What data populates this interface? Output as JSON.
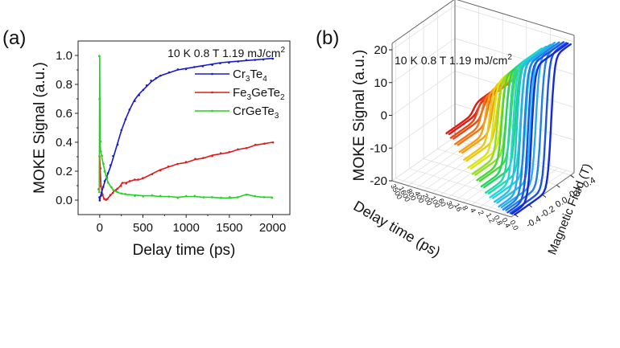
{
  "panels": {
    "a": {
      "label": "(a)"
    },
    "b": {
      "label": "(b)"
    }
  },
  "chart_data": [
    {
      "id": "a",
      "type": "line",
      "title": "",
      "annotation": "10 K  0.8 T  1.19 mJ/cm",
      "annotation_sup": "2",
      "xlabel": "Delay time (ps)",
      "ylabel": "MOKE Signal (a.u.)",
      "xlim": [
        -250,
        2200
      ],
      "ylim": [
        -0.1,
        1.1
      ],
      "xticks": [
        0,
        500,
        1000,
        1500,
        2000
      ],
      "xtick_labels": [
        "0",
        "500",
        "1000",
        "1500",
        "2000"
      ],
      "yticks": [
        0.0,
        0.2,
        0.4,
        0.6,
        0.8,
        1.0
      ],
      "ytick_labels": [
        "0.0",
        "0.2",
        "0.4",
        "0.6",
        "0.8",
        "1.0"
      ],
      "grid": false,
      "legend_position": "top-right",
      "series": [
        {
          "name": "Cr3Te4",
          "name_parts": [
            [
              "Cr",
              ""
            ],
            [
              "3",
              "sub"
            ],
            [
              "Te",
              ""
            ],
            [
              "4",
              "sub"
            ]
          ],
          "color": "#1a1acc",
          "x": [
            -5,
            0,
            10,
            20,
            40,
            60,
            80,
            100,
            130,
            160,
            200,
            250,
            300,
            350,
            400,
            450,
            500,
            550,
            600,
            650,
            700,
            800,
            900,
            1000,
            1100,
            1200,
            1300,
            1400,
            1500,
            1600,
            1700,
            1800,
            1900,
            2000
          ],
          "y": [
            0.02,
            0.0,
            0.03,
            0.05,
            0.09,
            0.13,
            0.16,
            0.19,
            0.24,
            0.3,
            0.38,
            0.48,
            0.56,
            0.63,
            0.69,
            0.73,
            0.76,
            0.79,
            0.82,
            0.84,
            0.86,
            0.88,
            0.9,
            0.91,
            0.92,
            0.93,
            0.94,
            0.95,
            0.955,
            0.96,
            0.965,
            0.97,
            0.975,
            0.98
          ]
        },
        {
          "name": "Fe3GeTe2",
          "name_parts": [
            [
              "Fe",
              ""
            ],
            [
              "3",
              "sub"
            ],
            [
              "GeTe",
              ""
            ],
            [
              "2",
              "sub"
            ]
          ],
          "color": "#dd1c1c",
          "x": [
            -5,
            0,
            5,
            15,
            30,
            50,
            70,
            90,
            120,
            150,
            180,
            210,
            240,
            260,
            300,
            350,
            400,
            450,
            500,
            600,
            700,
            800,
            900,
            1000,
            1100,
            1200,
            1300,
            1400,
            1500,
            1600,
            1700,
            1800,
            1900,
            2000
          ],
          "y": [
            0.08,
            0.3,
            0.22,
            0.1,
            0.04,
            0.01,
            0.0,
            0.01,
            0.03,
            0.05,
            0.07,
            0.08,
            0.1,
            0.12,
            0.12,
            0.13,
            0.14,
            0.14,
            0.15,
            0.18,
            0.21,
            0.23,
            0.25,
            0.26,
            0.28,
            0.29,
            0.31,
            0.32,
            0.33,
            0.35,
            0.36,
            0.38,
            0.39,
            0.4
          ]
        },
        {
          "name": "CrGeTe3",
          "name_parts": [
            [
              "CrGeTe",
              ""
            ],
            [
              "3",
              "sub"
            ]
          ],
          "color": "#22d422",
          "x": [
            -5,
            0,
            2,
            5,
            10,
            20,
            40,
            60,
            80,
            100,
            130,
            160,
            200,
            250,
            300,
            400,
            500,
            600,
            700,
            800,
            900,
            1000,
            1100,
            1200,
            1300,
            1400,
            1500,
            1600,
            1700,
            1800,
            1900,
            2000
          ],
          "y": [
            0.05,
            1.0,
            0.7,
            0.4,
            0.34,
            0.31,
            0.25,
            0.2,
            0.15,
            0.12,
            0.09,
            0.07,
            0.055,
            0.045,
            0.04,
            0.035,
            0.03,
            0.03,
            0.025,
            0.025,
            0.02,
            0.025,
            0.025,
            0.02,
            0.02,
            0.015,
            0.015,
            0.02,
            0.04,
            0.025,
            0.02,
            0.02
          ]
        }
      ]
    },
    {
      "id": "b",
      "type": "line",
      "subtype": "3d-waterfall",
      "annotation": "10 K  0.8 T  1.19 mJ/cm",
      "annotation_sup": "2",
      "zlabel": "MOKE Signal (a.u.)",
      "xlabel": "Delay time (ps)",
      "ylabel": "Magnetic Field (T)",
      "zlim": [
        -20,
        20
      ],
      "zticks": [
        -20,
        -10,
        0,
        10,
        20
      ],
      "ztick_labels": [
        "-20",
        "-10",
        "0",
        "10",
        "20"
      ],
      "field_lim": [
        -0.45,
        0.45
      ],
      "field_ticks": [
        -0.4,
        -0.2,
        0.0,
        0.2,
        0.4
      ],
      "field_tick_labels": [
        "-0.4",
        "-0.2",
        "0.0",
        "0.2",
        "0.4"
      ],
      "delay_tick_labels": [
        "0.0",
        "0.4",
        "0.8",
        "1.2",
        "2",
        "4",
        "8",
        "16",
        "30",
        "60",
        "100",
        "200",
        "400",
        "800",
        "1600",
        "3500"
      ],
      "colormap": "rainbow (blue = earliest delay, red = latest delay)",
      "field_sweep_T": [
        -0.4,
        0.4
      ],
      "loops": [
        {
          "delay_index": 0,
          "amplitude": 20,
          "coercive_T": 0.12
        },
        {
          "delay_index": 1,
          "amplitude": 20,
          "coercive_T": 0.11
        },
        {
          "delay_index": 2,
          "amplitude": 19.5,
          "coercive_T": 0.1
        },
        {
          "delay_index": 3,
          "amplitude": 19,
          "coercive_T": 0.09
        },
        {
          "delay_index": 4,
          "amplitude": 18,
          "coercive_T": 0.08
        },
        {
          "delay_index": 5,
          "amplitude": 17,
          "coercive_T": 0.07
        },
        {
          "delay_index": 6,
          "amplitude": 16,
          "coercive_T": 0.06
        },
        {
          "delay_index": 7,
          "amplitude": 14.5,
          "coercive_T": 0.05
        },
        {
          "delay_index": 8,
          "amplitude": 13,
          "coercive_T": 0.045
        },
        {
          "delay_index": 9,
          "amplitude": 11.5,
          "coercive_T": 0.04
        },
        {
          "delay_index": 10,
          "amplitude": 10,
          "coercive_T": 0.035
        },
        {
          "delay_index": 11,
          "amplitude": 8,
          "coercive_T": 0.03
        },
        {
          "delay_index": 12,
          "amplitude": 6,
          "coercive_T": 0.025
        },
        {
          "delay_index": 13,
          "amplitude": 4,
          "coercive_T": 0.02
        },
        {
          "delay_index": 14,
          "amplitude": 2.5,
          "coercive_T": 0.015
        },
        {
          "delay_index": 15,
          "amplitude": 1.5,
          "coercive_T": 0.01
        }
      ]
    }
  ]
}
